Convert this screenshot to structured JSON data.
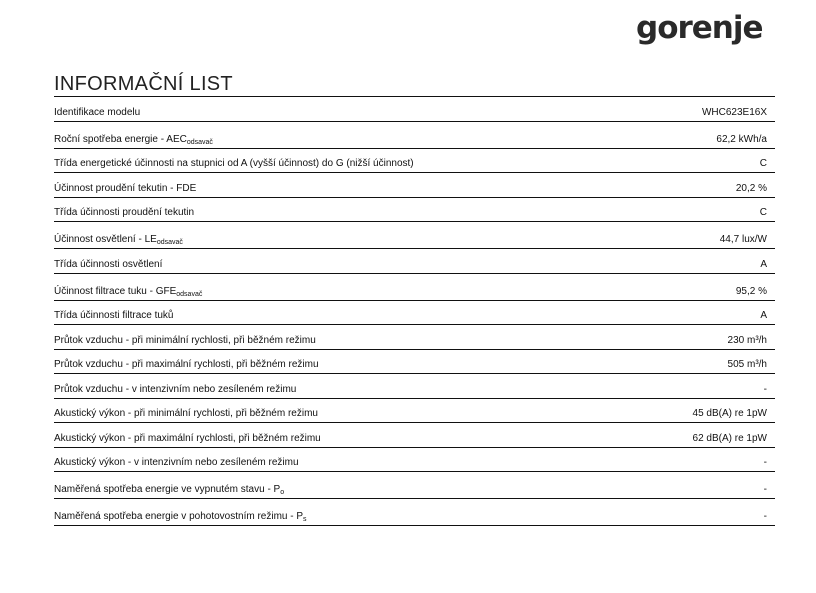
{
  "brand": {
    "logo": "gorenje"
  },
  "title": "INFORMAČNÍ LIST",
  "rows": [
    {
      "label": "Identifikace modelu",
      "sub": "",
      "value": "WHC623E16X"
    },
    {
      "label": "Roční spotřeba energie - AEC",
      "sub": "odsavač",
      "value": "62,2 kWh/a"
    },
    {
      "label": "Třída energetické účinnosti na stupnici od A (vyšší účinnost) do G (nižší účinnost)",
      "sub": "",
      "value": "C"
    },
    {
      "label": "Účinnost proudění tekutin - FDE",
      "sub": "",
      "value": "20,2 %"
    },
    {
      "label": "Třída účinnosti proudění tekutin",
      "sub": "",
      "value": "C"
    },
    {
      "label": "Účinnost osvětlení - LE",
      "sub": "odsavač",
      "value": "44,7 lux/W"
    },
    {
      "label": "Třída účinnosti osvětlení",
      "sub": "",
      "value": "A"
    },
    {
      "label": "Účinnost filtrace tuku - GFE",
      "sub": "odsavač",
      "value": "95,2 %"
    },
    {
      "label": "Třída účinnosti filtrace tuků",
      "sub": "",
      "value": "A"
    },
    {
      "label": "Průtok vzduchu - při minimální rychlosti, při běžném režimu",
      "sub": "",
      "value": "230 m³/h"
    },
    {
      "label": "Průtok vzduchu - při maximální rychlosti, při běžném režimu",
      "sub": "",
      "value": "505 m³/h"
    },
    {
      "label": "Průtok vzduchu - v intenzivním nebo zesíleném režimu",
      "sub": "",
      "value": "-"
    },
    {
      "label": "Akustický výkon - při minimální rychlosti, při běžném režimu",
      "sub": "",
      "value": "45 dB(A) re 1pW"
    },
    {
      "label": "Akustický výkon - při maximální rychlosti, při běžném režimu",
      "sub": "",
      "value": "62 dB(A) re 1pW"
    },
    {
      "label": "Akustický výkon - v intenzivním nebo zesíleném režimu",
      "sub": "",
      "value": "-"
    },
    {
      "label": "Naměřená spotřeba energie ve vypnutém stavu - P",
      "sub": "o",
      "value": "-"
    },
    {
      "label": "Naměřená spotřeba energie v pohotovostním režimu - P",
      "sub": "s",
      "value": "-"
    }
  ]
}
